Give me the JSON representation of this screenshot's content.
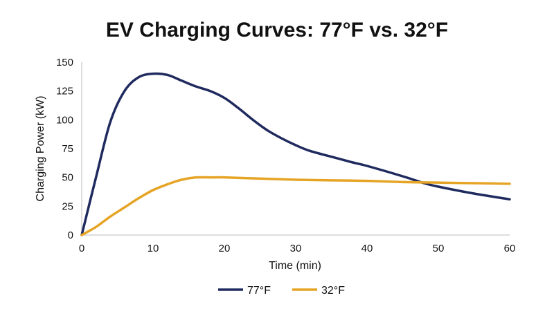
{
  "chart_data": {
    "type": "line",
    "title": "EV Charging Curves: 77°F vs. 32°F",
    "xlabel": "Time (min)",
    "ylabel": "Charging Power (kW)",
    "xlim": [
      0,
      60
    ],
    "ylim": [
      0,
      150
    ],
    "x_ticks": [
      0,
      10,
      20,
      30,
      40,
      50,
      60
    ],
    "y_ticks": [
      0,
      25,
      50,
      75,
      100,
      125,
      150
    ],
    "grid": false,
    "legend_position": "bottom",
    "series": [
      {
        "name": "77°F",
        "color": "#1f2a5e",
        "points": [
          [
            0,
            0
          ],
          [
            2,
            50
          ],
          [
            4,
            98
          ],
          [
            6,
            125
          ],
          [
            8,
            137
          ],
          [
            10,
            140
          ],
          [
            12,
            139
          ],
          [
            14,
            134
          ],
          [
            16,
            129
          ],
          [
            18,
            125
          ],
          [
            20,
            119
          ],
          [
            22,
            110
          ],
          [
            24,
            100
          ],
          [
            26,
            91
          ],
          [
            28,
            84
          ],
          [
            30,
            78
          ],
          [
            32,
            73
          ],
          [
            35,
            68
          ],
          [
            38,
            63
          ],
          [
            40,
            60
          ],
          [
            45,
            51
          ],
          [
            48,
            45
          ],
          [
            50,
            42
          ],
          [
            55,
            36
          ],
          [
            60,
            31
          ]
        ]
      },
      {
        "name": "32°F",
        "color": "#e6a425",
        "points": [
          [
            0,
            0
          ],
          [
            2,
            7
          ],
          [
            4,
            16
          ],
          [
            6,
            24
          ],
          [
            8,
            32
          ],
          [
            10,
            39
          ],
          [
            12,
            44
          ],
          [
            14,
            48
          ],
          [
            16,
            50
          ],
          [
            18,
            50
          ],
          [
            20,
            50
          ],
          [
            25,
            49
          ],
          [
            30,
            48
          ],
          [
            35,
            47.5
          ],
          [
            40,
            47
          ],
          [
            45,
            46
          ],
          [
            50,
            45.5
          ],
          [
            55,
            45
          ],
          [
            60,
            44.5
          ]
        ]
      }
    ]
  }
}
